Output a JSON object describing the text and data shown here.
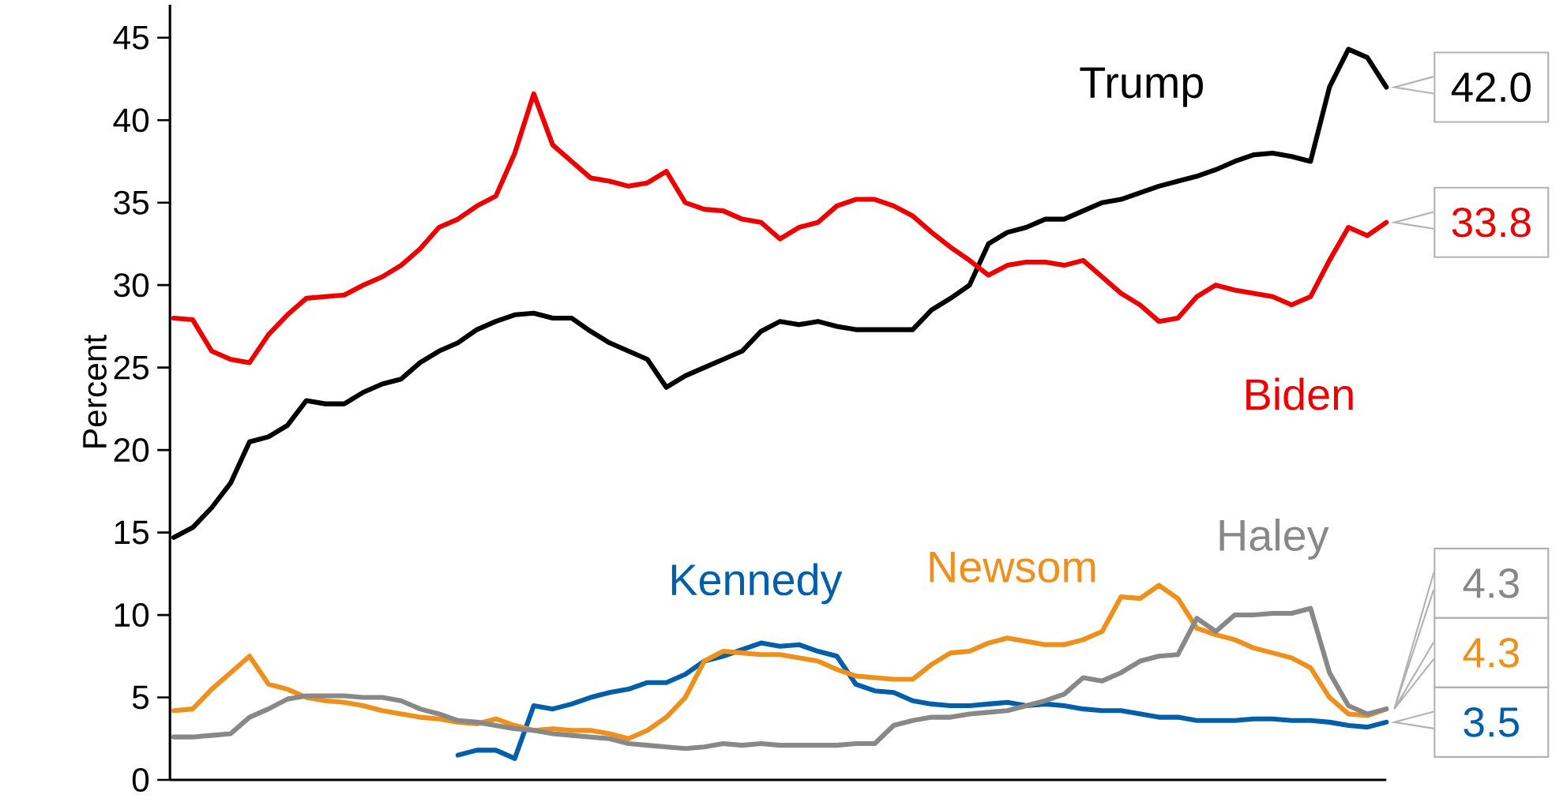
{
  "chart_data": {
    "type": "line",
    "ylabel": "Percent",
    "ylim": [
      0,
      47
    ],
    "yticks": [
      0,
      5,
      10,
      15,
      20,
      25,
      30,
      35,
      40,
      45
    ],
    "tick_labels": "y",
    "categories": [
      null,
      null,
      null,
      null,
      null,
      null,
      null,
      null,
      null,
      null,
      null,
      null,
      null,
      null,
      null,
      null,
      null,
      null,
      null,
      null,
      null,
      null,
      null,
      null,
      null,
      null,
      null,
      null,
      null,
      null,
      null,
      null,
      null,
      null,
      null,
      null,
      null,
      null,
      null,
      null,
      null,
      null,
      null,
      null,
      null,
      null,
      null,
      null,
      null,
      null,
      null,
      null,
      null,
      null,
      null,
      null,
      null,
      null,
      null,
      null,
      null,
      null,
      null,
      null,
      null
    ],
    "series": [
      {
        "name": "Trump",
        "color": "#000000",
        "values": [
          14.7,
          15.3,
          16.5,
          18,
          20.5,
          20.8,
          21.5,
          23,
          22.8,
          22.8,
          23.5,
          24,
          24.3,
          25.3,
          26,
          26.5,
          27.3,
          27.8,
          28.2,
          28.3,
          28,
          28,
          27.2,
          26.5,
          26,
          25.5,
          23.8,
          24.5,
          25,
          25.5,
          26,
          27.2,
          27.8,
          27.6,
          27.8,
          27.5,
          27.3,
          27.3,
          27.3,
          27.3,
          28.5,
          29.2,
          30,
          32.5,
          33.2,
          33.5,
          34,
          34,
          34.5,
          35,
          35.2,
          35.6,
          36,
          36.3,
          36.6,
          37,
          37.5,
          37.9,
          38,
          37.8,
          37.5,
          42,
          44.3,
          43.8,
          42.0
        ],
        "value_labels": [
          null,
          null,
          null,
          null,
          null,
          null,
          null,
          null,
          null,
          null,
          null,
          null,
          null,
          null,
          null,
          null,
          null,
          null,
          null,
          null,
          null,
          null,
          null,
          null,
          null,
          null,
          null,
          null,
          null,
          null,
          null,
          null,
          null,
          null,
          null,
          null,
          null,
          null,
          null,
          null,
          null,
          null,
          null,
          null,
          null,
          null,
          null,
          null,
          null,
          null,
          null,
          null,
          null,
          null,
          null,
          null,
          null,
          null,
          null,
          null,
          null,
          null,
          null,
          null,
          "42.0"
        ]
      },
      {
        "name": "Biden",
        "color": "#ee0000",
        "values": [
          28,
          27.9,
          26,
          25.5,
          25.3,
          27,
          28.2,
          29.2,
          29.3,
          29.4,
          30,
          30.5,
          31.2,
          32.2,
          33.5,
          34,
          34.8,
          35.4,
          38,
          41.6,
          38.5,
          37.5,
          36.5,
          36.3,
          36,
          36.2,
          36.9,
          35,
          34.6,
          34.5,
          34,
          33.8,
          32.8,
          33.5,
          33.8,
          34.8,
          35.2,
          35.2,
          34.8,
          34.2,
          33.2,
          32.3,
          31.5,
          30.6,
          31.2,
          31.4,
          31.4,
          31.2,
          31.5,
          30.5,
          29.5,
          28.8,
          27.8,
          28,
          29.3,
          30,
          29.7,
          29.5,
          29.3,
          28.8,
          29.3,
          31.5,
          33.5,
          33,
          33.8
        ],
        "value_labels": [
          null,
          null,
          null,
          null,
          null,
          null,
          null,
          null,
          null,
          null,
          null,
          null,
          null,
          null,
          null,
          null,
          null,
          null,
          null,
          null,
          null,
          null,
          null,
          null,
          null,
          null,
          null,
          null,
          null,
          null,
          null,
          null,
          null,
          null,
          null,
          null,
          null,
          null,
          null,
          null,
          null,
          null,
          null,
          null,
          null,
          null,
          null,
          null,
          null,
          null,
          null,
          null,
          null,
          null,
          null,
          null,
          null,
          null,
          null,
          null,
          null,
          null,
          null,
          null,
          "33.8"
        ]
      },
      {
        "name": "Kennedy",
        "color": "#005fab",
        "values": [
          null,
          null,
          null,
          null,
          null,
          null,
          null,
          null,
          null,
          null,
          null,
          null,
          null,
          null,
          null,
          1.5,
          1.8,
          1.8,
          1.3,
          4.5,
          4.3,
          4.6,
          5,
          5.3,
          5.5,
          5.9,
          5.9,
          6.4,
          7.2,
          7.5,
          7.9,
          8.3,
          8.1,
          8.2,
          7.8,
          7.5,
          5.8,
          5.4,
          5.3,
          4.8,
          4.6,
          4.5,
          4.5,
          4.6,
          4.7,
          4.5,
          4.6,
          4.5,
          4.3,
          4.2,
          4.2,
          4,
          3.8,
          3.8,
          3.6,
          3.6,
          3.6,
          3.7,
          3.7,
          3.6,
          3.6,
          3.5,
          3.3,
          3.2,
          3.5
        ],
        "value_labels": [
          null,
          null,
          null,
          null,
          null,
          null,
          null,
          null,
          null,
          null,
          null,
          null,
          null,
          null,
          null,
          null,
          null,
          null,
          null,
          null,
          null,
          null,
          null,
          null,
          null,
          null,
          null,
          null,
          null,
          null,
          null,
          null,
          null,
          null,
          null,
          null,
          null,
          null,
          null,
          null,
          null,
          null,
          null,
          null,
          null,
          null,
          null,
          null,
          null,
          null,
          null,
          null,
          null,
          null,
          null,
          null,
          null,
          null,
          null,
          null,
          null,
          null,
          null,
          null,
          "3.5"
        ]
      },
      {
        "name": "Newsom",
        "color": "#f0901c",
        "values": [
          4.2,
          4.3,
          5.5,
          6.5,
          7.5,
          5.8,
          5.5,
          5,
          4.8,
          4.7,
          4.5,
          4.2,
          4,
          3.8,
          3.7,
          3.5,
          3.4,
          3.7,
          3.3,
          3,
          3.1,
          3,
          3,
          2.8,
          2.5,
          3,
          3.8,
          5,
          7.2,
          7.8,
          7.7,
          7.6,
          7.6,
          7.4,
          7.2,
          6.7,
          6.3,
          6.2,
          6.1,
          6.1,
          7,
          7.7,
          7.8,
          8.3,
          8.6,
          8.4,
          8.2,
          8.2,
          8.5,
          9,
          11.1,
          11,
          11.8,
          11,
          9.2,
          8.8,
          8.5,
          8,
          7.7,
          7.4,
          6.8,
          5,
          4,
          3.9,
          4.3
        ],
        "value_labels": [
          null,
          null,
          null,
          null,
          null,
          null,
          null,
          null,
          null,
          null,
          null,
          null,
          null,
          null,
          null,
          null,
          null,
          null,
          null,
          null,
          null,
          null,
          null,
          null,
          null,
          null,
          null,
          null,
          null,
          null,
          null,
          null,
          null,
          null,
          null,
          null,
          null,
          null,
          null,
          null,
          null,
          null,
          null,
          null,
          null,
          null,
          null,
          null,
          null,
          null,
          null,
          null,
          null,
          null,
          null,
          null,
          null,
          null,
          null,
          null,
          null,
          null,
          null,
          null,
          "4.3"
        ]
      },
      {
        "name": "Haley",
        "color": "#888888",
        "values": [
          2.6,
          2.6,
          2.7,
          2.8,
          3.8,
          4.3,
          4.9,
          5.1,
          5.1,
          5.1,
          5,
          5,
          4.8,
          4.3,
          4,
          3.6,
          3.5,
          3.3,
          3.1,
          3,
          2.8,
          2.7,
          2.6,
          2.5,
          2.2,
          2.1,
          2,
          1.9,
          2,
          2.2,
          2.1,
          2.2,
          2.1,
          2.1,
          2.1,
          2.1,
          2.2,
          2.2,
          3.3,
          3.6,
          3.8,
          3.8,
          4,
          4.1,
          4.2,
          4.5,
          4.8,
          5.2,
          6.2,
          6,
          6.5,
          7.2,
          7.5,
          7.6,
          9.8,
          9,
          10,
          10,
          10.1,
          10.1,
          10.4,
          6.5,
          4.5,
          4,
          4.3
        ],
        "value_labels": [
          null,
          null,
          null,
          null,
          null,
          null,
          null,
          null,
          null,
          null,
          null,
          null,
          null,
          null,
          null,
          null,
          null,
          null,
          null,
          null,
          null,
          null,
          null,
          null,
          null,
          null,
          null,
          null,
          null,
          null,
          null,
          null,
          null,
          null,
          null,
          null,
          null,
          null,
          null,
          null,
          null,
          null,
          null,
          null,
          null,
          null,
          null,
          null,
          null,
          null,
          null,
          null,
          null,
          null,
          null,
          null,
          null,
          null,
          null,
          null,
          null,
          null,
          null,
          null,
          "4.3"
        ]
      }
    ]
  }
}
